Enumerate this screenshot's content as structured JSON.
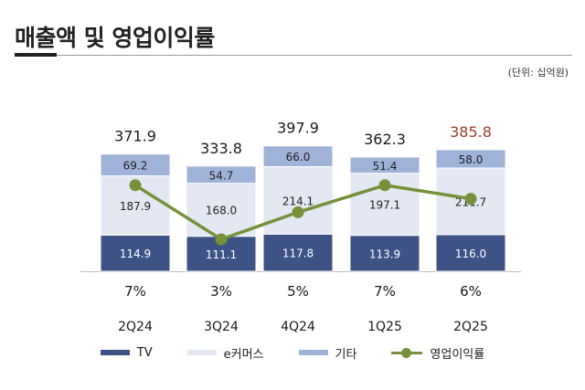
{
  "header": {
    "title": "매출액 및 영업이익률",
    "unit": "(단위: 십억원)"
  },
  "colors": {
    "tv": "#3d5386",
    "ecommerce": "#e3e8f2",
    "other": "#9fb3d8",
    "margin": "#76913a",
    "highlight": "#a13a2c"
  },
  "chart_data": {
    "type": "bar",
    "stacked": true,
    "categories": [
      "2Q24",
      "3Q24",
      "4Q24",
      "1Q25",
      "2Q25"
    ],
    "series": [
      {
        "name": "TV",
        "values": [
          114.9,
          111.1,
          117.8,
          113.9,
          116.0
        ],
        "labels": [
          "114.9",
          "111.1",
          "117.8",
          "113.9",
          "116.0"
        ]
      },
      {
        "name": "e커머스",
        "values": [
          187.9,
          168.0,
          214.1,
          197.1,
          211.7
        ],
        "labels": [
          "187.9",
          "168.0",
          "214.1",
          "197.1",
          "211.7"
        ]
      },
      {
        "name": "기타",
        "values": [
          69.2,
          54.7,
          66.0,
          51.4,
          58.0
        ],
        "labels": [
          "69.2",
          "54.7",
          "66.0",
          "51.4",
          "58.0"
        ]
      }
    ],
    "totals": [
      371.9,
      333.8,
      397.9,
      362.3,
      385.8
    ],
    "total_labels": [
      "371.9",
      "333.8",
      "397.9",
      "362.3",
      "385.8"
    ],
    "highlight_index": 4,
    "line_series": {
      "name": "영업이익률",
      "values": [
        7,
        3,
        5,
        7,
        6
      ],
      "labels": [
        "7%",
        "3%",
        "5%",
        "7%",
        "6%"
      ]
    },
    "legend": [
      "TV",
      "e커머스",
      "기타",
      "영업이익률"
    ],
    "legend_position": "bottom",
    "grid": false
  }
}
